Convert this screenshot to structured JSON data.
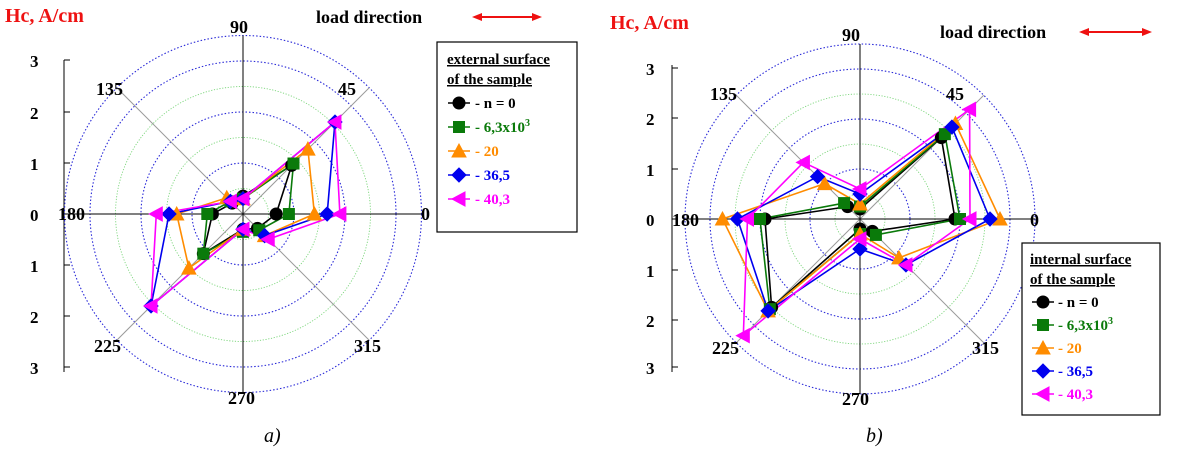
{
  "load_label": "load direction",
  "panels": [
    {
      "id": "a",
      "caption": "a)",
      "y_label": "Hc, A/cm",
      "legend_title_1": "external surface",
      "legend_title_2": "of the sample",
      "angle_labels": [
        "0",
        "45",
        "90",
        "135",
        "180",
        "225",
        "270",
        "315"
      ],
      "r_tick_labels": [
        "3",
        "2",
        "1",
        "0",
        "1",
        "2",
        "3"
      ],
      "colors": {
        "grid_green": "#7cd67c",
        "grid_blue": "#2a2ad8",
        "axis": "#000000",
        "diag": "#9a9a9a",
        "arrow": "#ee1111"
      }
    },
    {
      "id": "b",
      "caption": "b)",
      "y_label": "Hc, A/cm",
      "legend_title_1": "internal surface",
      "legend_title_2": "of the sample",
      "angle_labels": [
        "0",
        "45",
        "90",
        "135",
        "180",
        "225",
        "270",
        "315"
      ],
      "r_tick_labels": [
        "3",
        "2",
        "1",
        "0",
        "1",
        "2",
        "3"
      ],
      "colors": {
        "grid_green": "#7cd67c",
        "grid_blue": "#2a2ad8",
        "axis": "#000000",
        "diag": "#9a9a9a",
        "arrow": "#ee1111"
      }
    }
  ],
  "chart_data": [
    {
      "type": "polar-line",
      "ylabel": "Hc, A/cm",
      "rlim": [
        0,
        3.5
      ],
      "theta": [
        0,
        45,
        90,
        135,
        180,
        225,
        270,
        315,
        360
      ],
      "legend": "external surface of the sample",
      "series": [
        {
          "name": "- n = 0",
          "color": "#000000",
          "marker": "circle",
          "r": [
            0.65,
            1.35,
            0.35,
            0.3,
            0.6,
            1.1,
            0.3,
            0.4,
            0.65
          ]
        },
        {
          "name": "- 6,3x10",
          "superscript": "3",
          "color": "#0a7a0a",
          "marker": "square",
          "r": [
            0.9,
            1.4,
            0.3,
            0.35,
            0.7,
            1.1,
            0.35,
            0.45,
            0.9
          ]
        },
        {
          "name": "- 20",
          "color": "#ff8c00",
          "marker": "triangle-up",
          "r": [
            1.4,
            1.8,
            0.3,
            0.45,
            1.3,
            1.5,
            0.3,
            0.6,
            1.4
          ]
        },
        {
          "name": "- 36,5",
          "color": "#0000ee",
          "marker": "diamond",
          "r": [
            1.65,
            2.55,
            0.3,
            0.35,
            1.45,
            2.55,
            0.3,
            0.6,
            1.65
          ]
        },
        {
          "name": "- 40,3",
          "color": "#ff00ff",
          "marker": "triangle-left",
          "r": [
            1.9,
            2.55,
            0.3,
            0.35,
            1.7,
            2.55,
            0.3,
            0.7,
            1.9
          ]
        }
      ]
    },
    {
      "type": "polar-line",
      "ylabel": "Hc, A/cm",
      "rlim": [
        0,
        3.5
      ],
      "theta": [
        0,
        45,
        90,
        135,
        180,
        225,
        270,
        315,
        360
      ],
      "legend": "internal surface of the sample",
      "series": [
        {
          "name": "- n = 0",
          "color": "#000000",
          "marker": "circle",
          "r": [
            1.9,
            2.3,
            0.2,
            0.35,
            1.9,
            2.5,
            0.2,
            0.35,
            1.9
          ]
        },
        {
          "name": "- 6,3x10",
          "superscript": "3",
          "color": "#0a7a0a",
          "marker": "square",
          "r": [
            2.0,
            2.4,
            0.25,
            0.45,
            2.0,
            2.55,
            0.3,
            0.45,
            2.0
          ]
        },
        {
          "name": "- 20",
          "color": "#ff8c00",
          "marker": "triangle-up",
          "r": [
            2.8,
            2.7,
            0.3,
            1.0,
            2.75,
            2.6,
            0.3,
            1.1,
            2.8
          ]
        },
        {
          "name": "- 36,5",
          "color": "#0000ee",
          "marker": "diamond",
          "r": [
            2.6,
            2.6,
            0.5,
            1.2,
            2.45,
            2.6,
            0.6,
            1.3,
            2.6
          ]
        },
        {
          "name": "- 40,3",
          "color": "#ff00ff",
          "marker": "triangle-left",
          "r": [
            2.2,
            3.1,
            0.6,
            1.6,
            2.25,
            3.3,
            0.4,
            1.3,
            2.2
          ]
        }
      ]
    }
  ]
}
